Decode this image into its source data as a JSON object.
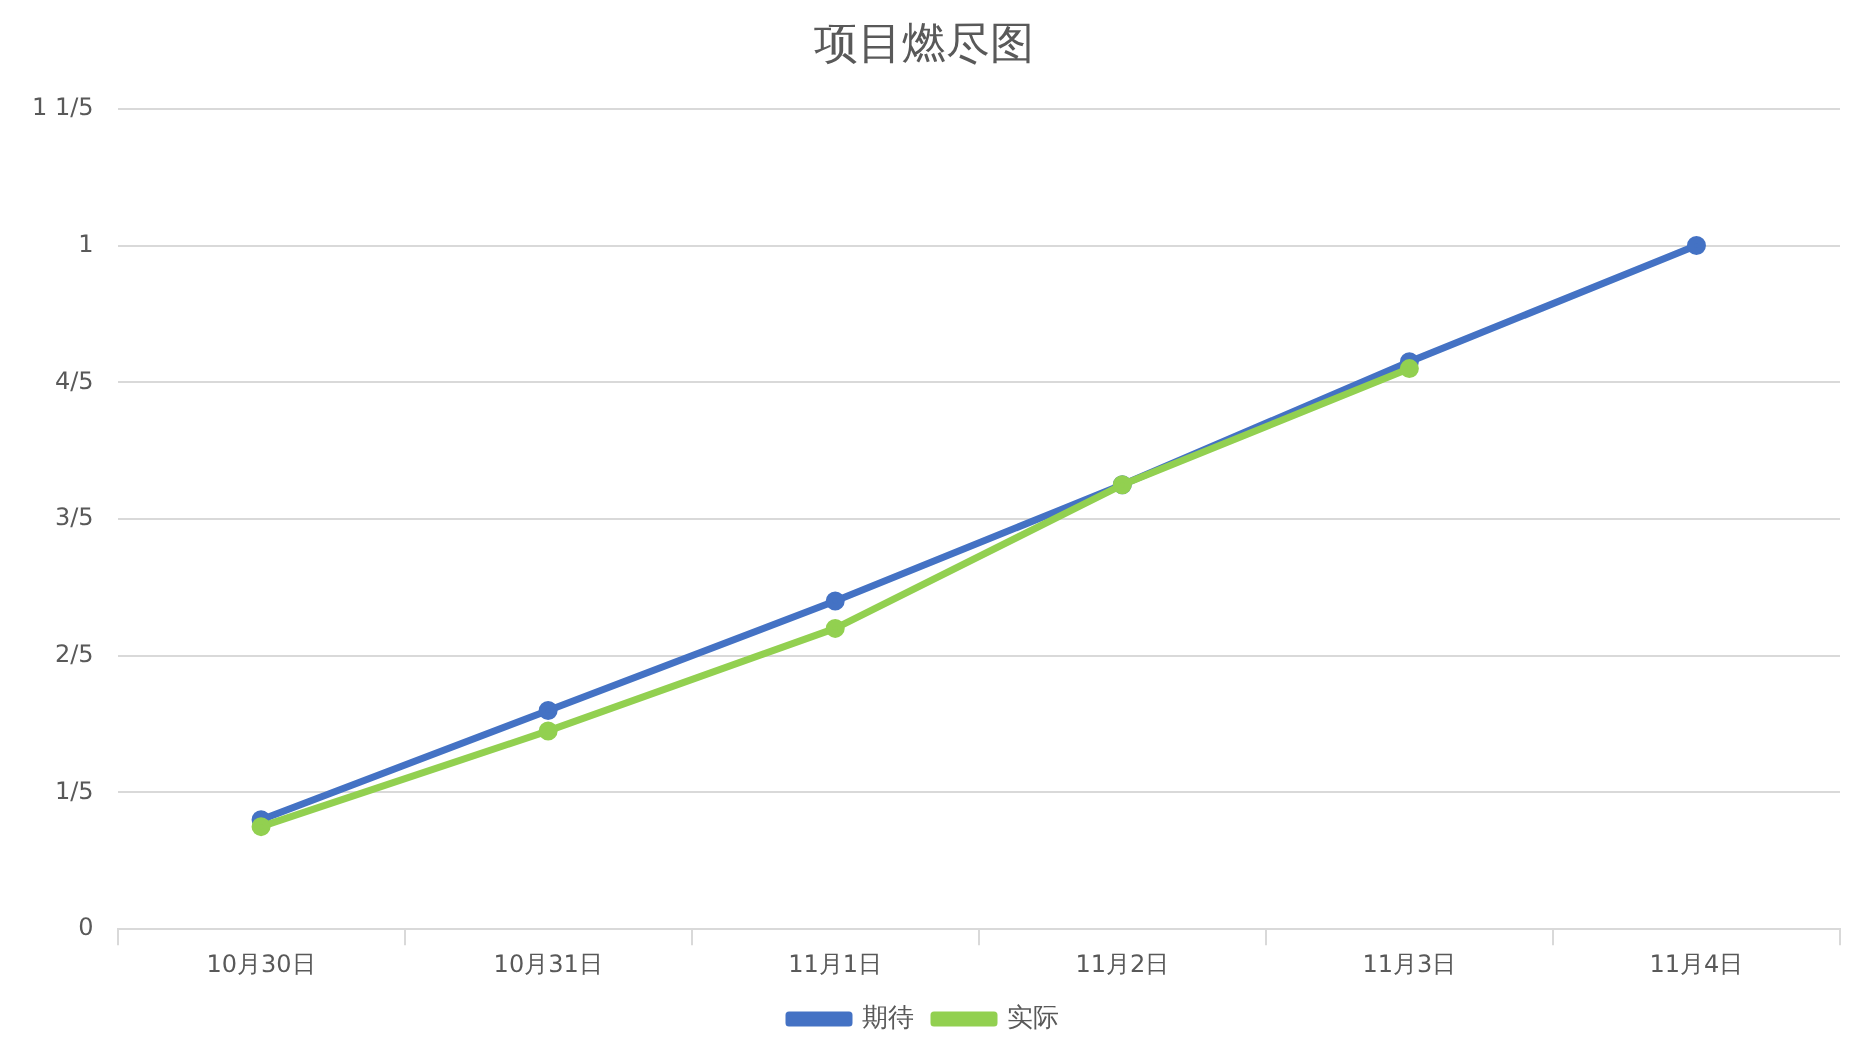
{
  "chart_data": {
    "type": "line",
    "title": "项目燃尽图",
    "categories": [
      "10月30日",
      "10月31日",
      "11月1日",
      "11月2日",
      "11月3日",
      "11月4日"
    ],
    "series": [
      {
        "name": "期待",
        "color": "#4472c4",
        "values": [
          0.16,
          0.32,
          0.48,
          0.65,
          0.83,
          1
        ]
      },
      {
        "name": "实际",
        "color": "#92d050",
        "values": [
          0.15,
          0.29,
          0.44,
          0.65,
          0.82,
          null
        ]
      }
    ],
    "ylim": [
      0,
      1.2
    ],
    "yticks": [
      0,
      {
        "value": 0.2,
        "label": "1/5"
      },
      {
        "value": 0.4,
        "label": "2/5"
      },
      {
        "value": 0.6,
        "label": "3/5"
      },
      {
        "value": 0.8,
        "label": "4/5"
      },
      1,
      {
        "value": 1.2,
        "label": "1 1/5"
      }
    ],
    "grid": "y",
    "legend": "bottom",
    "marker": "circle",
    "line_style": "solid"
  }
}
